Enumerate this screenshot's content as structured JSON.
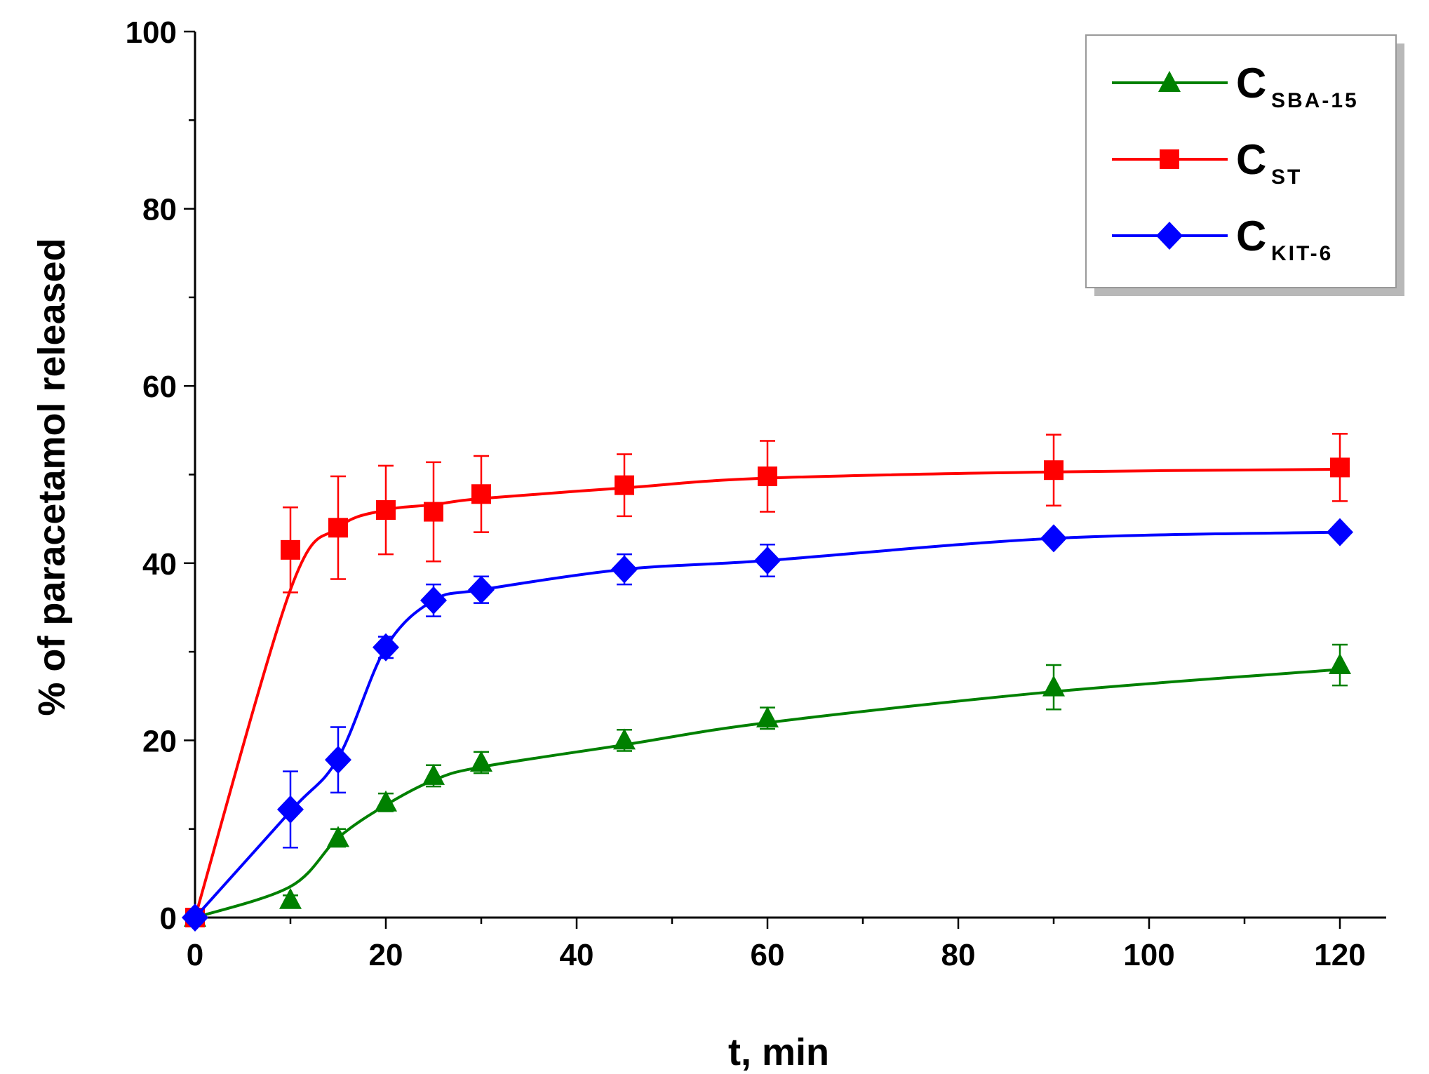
{
  "chart_data": {
    "type": "line",
    "title": "",
    "xlabel": "t, min",
    "ylabel": "% of paracetamol released",
    "xlim": [
      0,
      125
    ],
    "ylim": [
      0,
      100
    ],
    "xticks": [
      "0",
      "20",
      "40",
      "60",
      "80",
      "100",
      "120"
    ],
    "yticks": [
      "0",
      "20",
      "40",
      "60",
      "80",
      "100"
    ],
    "xtick_values": [
      0,
      20,
      40,
      60,
      80,
      100,
      120
    ],
    "ytick_values": [
      0,
      20,
      40,
      60,
      80,
      100
    ],
    "legend_position": "top-right",
    "series": [
      {
        "name": "C",
        "subscript": "SBA-15",
        "color": "#008000",
        "marker": "triangle",
        "x": [
          0,
          10,
          15,
          20,
          25,
          30,
          45,
          60,
          90,
          120
        ],
        "y": [
          0,
          2,
          9,
          13,
          16,
          17.5,
          20,
          22.5,
          26,
          28.5
        ],
        "err": [
          0,
          0.5,
          1,
          1,
          1.2,
          1.2,
          1.2,
          1.2,
          2.5,
          2.3
        ],
        "fit_y": [
          0,
          3.5,
          9,
          12.7,
          15.5,
          17,
          19.5,
          22,
          25.5,
          28
        ]
      },
      {
        "name": "C",
        "subscript": "ST",
        "color": "#ff0000",
        "marker": "square",
        "x": [
          0,
          10,
          15,
          20,
          25,
          30,
          45,
          60,
          90,
          120
        ],
        "y": [
          0,
          41.5,
          44,
          46,
          45.8,
          47.8,
          48.8,
          49.8,
          50.5,
          50.8
        ],
        "err": [
          0,
          4.8,
          5.8,
          5,
          5.6,
          4.3,
          3.5,
          4,
          4,
          3.8
        ],
        "fit_y": [
          0,
          37,
          44,
          46,
          46.6,
          47.3,
          48.5,
          49.6,
          50.3,
          50.6
        ]
      },
      {
        "name": "C",
        "subscript": "KIT-6",
        "color": "#0000ff",
        "marker": "diamond",
        "x": [
          0,
          10,
          15,
          20,
          25,
          30,
          45,
          60,
          90,
          120
        ],
        "y": [
          0,
          12.2,
          17.8,
          30.5,
          35.8,
          37,
          39.3,
          40.3,
          42.8,
          43.5
        ],
        "err": [
          0,
          4.3,
          3.7,
          1.2,
          1.8,
          1.5,
          1.7,
          1.8,
          0.6,
          0.4
        ],
        "fit_y": [
          0,
          12,
          18,
          30.5,
          35.8,
          37,
          39.3,
          40.3,
          42.8,
          43.5
        ]
      }
    ]
  }
}
